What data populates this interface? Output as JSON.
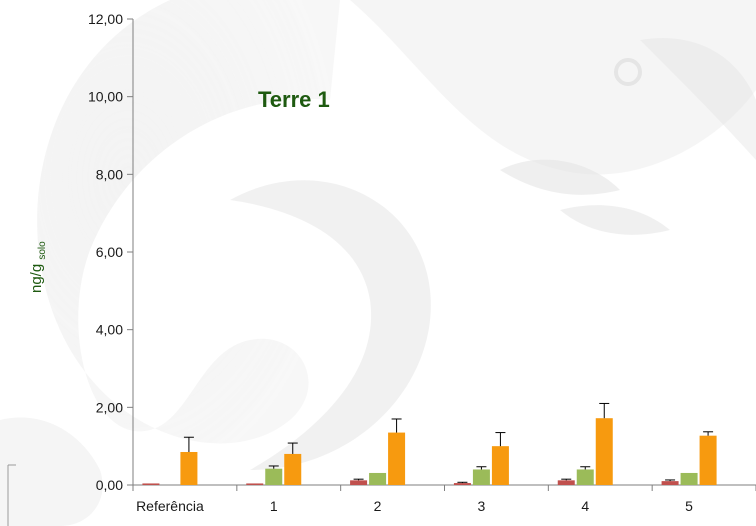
{
  "chart_data": {
    "type": "bar",
    "title": "Terre 1",
    "ylabel_main": "ng/g",
    "ylabel_sub": "solo",
    "xlabel": "",
    "ylim": [
      0,
      12
    ],
    "yticks": [
      0,
      2,
      4,
      6,
      8,
      10,
      12
    ],
    "ytick_labels": [
      "0,00",
      "2,00",
      "4,00",
      "6,00",
      "8,00",
      "10,00",
      "12,00"
    ],
    "categories": [
      "Referência",
      "1",
      "2",
      "3",
      "4",
      "5"
    ],
    "legend": "none",
    "grid": false,
    "series": [
      {
        "color": "#c0504d",
        "values": [
          0.04,
          0.04,
          0.12,
          0.05,
          0.12,
          0.1
        ],
        "errors": [
          0.0,
          0.0,
          0.03,
          0.02,
          0.03,
          0.03
        ]
      },
      {
        "color": "#9bbb59",
        "values": [
          0.0,
          0.42,
          0.31,
          0.4,
          0.4,
          0.31
        ],
        "errors": [
          0.0,
          0.07,
          0.0,
          0.07,
          0.07,
          0.0
        ]
      },
      {
        "color": "#f79a0f",
        "values": [
          0.85,
          0.8,
          1.35,
          1.0,
          1.72,
          1.27
        ],
        "errors": [
          0.38,
          0.28,
          0.35,
          0.35,
          0.38,
          0.1
        ]
      }
    ],
    "colors": {
      "axis": "#7f7f7f",
      "error_bar": "#000000",
      "title": "#1e5a10"
    }
  }
}
